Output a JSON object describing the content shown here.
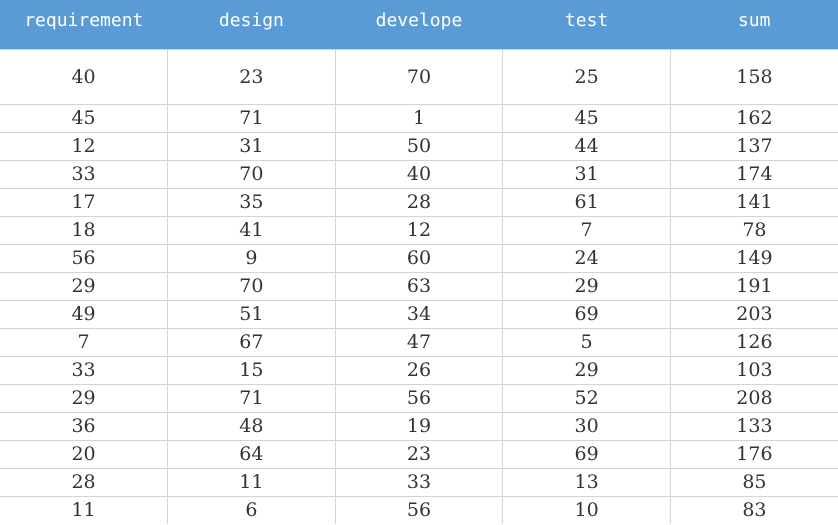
{
  "table": {
    "headers": [
      "requirement",
      "design",
      "develope",
      "test",
      "sum"
    ],
    "rows": [
      [
        "40",
        "23",
        "70",
        "25",
        "158"
      ],
      [
        "45",
        "71",
        "1",
        "45",
        "162"
      ],
      [
        "12",
        "31",
        "50",
        "44",
        "137"
      ],
      [
        "33",
        "70",
        "40",
        "31",
        "174"
      ],
      [
        "17",
        "35",
        "28",
        "61",
        "141"
      ],
      [
        "18",
        "41",
        "12",
        "7",
        "78"
      ],
      [
        "56",
        "9",
        "60",
        "24",
        "149"
      ],
      [
        "29",
        "70",
        "63",
        "29",
        "191"
      ],
      [
        "49",
        "51",
        "34",
        "69",
        "203"
      ],
      [
        "7",
        "67",
        "47",
        "5",
        "126"
      ],
      [
        "33",
        "15",
        "26",
        "29",
        "103"
      ],
      [
        "29",
        "71",
        "56",
        "52",
        "208"
      ],
      [
        "36",
        "48",
        "19",
        "30",
        "133"
      ],
      [
        "20",
        "64",
        "23",
        "69",
        "176"
      ],
      [
        "28",
        "11",
        "33",
        "13",
        "85"
      ],
      [
        "11",
        "6",
        "56",
        "10",
        "83"
      ]
    ]
  },
  "colors": {
    "header_background": "#5b9bd5",
    "header_text": "#ffffff",
    "cell_text": "#333333",
    "grid_line": "#d4d4d4"
  }
}
